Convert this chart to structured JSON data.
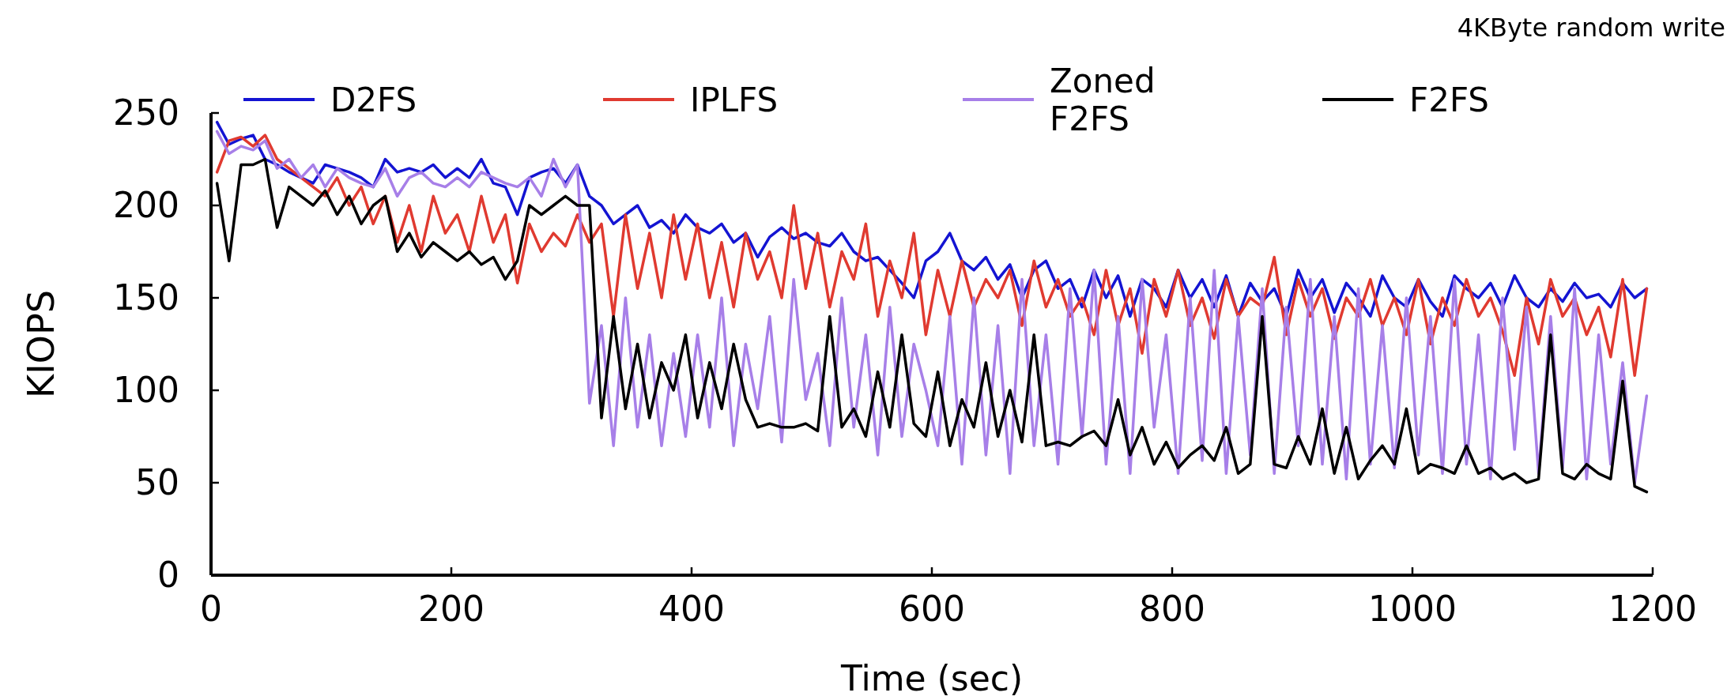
{
  "chart_data": {
    "type": "line",
    "title": "4KByte random write",
    "xlabel": "Time (sec)",
    "ylabel": "KIOPS",
    "x": [
      5,
      15,
      25,
      35,
      45,
      55,
      65,
      75,
      85,
      95,
      105,
      115,
      125,
      135,
      145,
      155,
      165,
      175,
      185,
      195,
      205,
      215,
      225,
      235,
      245,
      255,
      265,
      275,
      285,
      295,
      305,
      315,
      325,
      335,
      345,
      355,
      365,
      375,
      385,
      395,
      405,
      415,
      425,
      435,
      445,
      455,
      465,
      475,
      485,
      495,
      505,
      515,
      525,
      535,
      545,
      555,
      565,
      575,
      585,
      595,
      605,
      615,
      625,
      635,
      645,
      655,
      665,
      675,
      685,
      695,
      705,
      715,
      725,
      735,
      745,
      755,
      765,
      775,
      785,
      795,
      805,
      815,
      825,
      835,
      845,
      855,
      865,
      875,
      885,
      895,
      905,
      915,
      925,
      935,
      945,
      955,
      965,
      975,
      985,
      995,
      1005,
      1015,
      1025,
      1035,
      1045,
      1055,
      1065,
      1075,
      1085,
      1095,
      1105,
      1115,
      1125,
      1135,
      1145,
      1155,
      1165,
      1175,
      1185,
      1195
    ],
    "xlim": [
      0,
      1200
    ],
    "xticks": [
      0,
      200,
      400,
      600,
      800,
      1000,
      1200
    ],
    "ylim": [
      0,
      250
    ],
    "yticks": [
      0,
      50,
      100,
      150,
      200,
      250
    ],
    "legend": "top",
    "line_style": "solid",
    "series": [
      {
        "name": "D2FS",
        "color": "#1414d2",
        "values": [
          245,
          233,
          236,
          238,
          225,
          222,
          218,
          215,
          212,
          222,
          220,
          218,
          215,
          210,
          225,
          218,
          220,
          218,
          222,
          215,
          220,
          215,
          225,
          212,
          210,
          195,
          215,
          218,
          220,
          212,
          222,
          205,
          200,
          190,
          195,
          200,
          188,
          192,
          185,
          195,
          188,
          185,
          190,
          180,
          185,
          172,
          183,
          188,
          182,
          185,
          180,
          178,
          185,
          175,
          170,
          172,
          165,
          158,
          150,
          170,
          175,
          185,
          170,
          165,
          172,
          160,
          168,
          150,
          165,
          170,
          155,
          160,
          145,
          165,
          150,
          162,
          140,
          160,
          155,
          145,
          165,
          150,
          160,
          145,
          162,
          140,
          158,
          148,
          155,
          140,
          165,
          150,
          160,
          142,
          158,
          150,
          140,
          162,
          150,
          145,
          160,
          148,
          140,
          162,
          155,
          150,
          158,
          145,
          162,
          150,
          145,
          155,
          148,
          158,
          150,
          152,
          145,
          158,
          150,
          155
        ]
      },
      {
        "name": "IPLFS",
        "color": "#e03a30",
        "values": [
          218,
          235,
          237,
          232,
          238,
          225,
          220,
          215,
          210,
          205,
          215,
          200,
          210,
          190,
          205,
          180,
          200,
          175,
          205,
          185,
          195,
          175,
          205,
          180,
          195,
          158,
          190,
          175,
          185,
          178,
          195,
          180,
          190,
          140,
          195,
          155,
          185,
          150,
          195,
          160,
          190,
          150,
          180,
          145,
          185,
          160,
          175,
          150,
          200,
          155,
          185,
          145,
          175,
          160,
          190,
          140,
          170,
          150,
          185,
          130,
          165,
          140,
          170,
          145,
          160,
          150,
          165,
          135,
          170,
          145,
          160,
          140,
          150,
          130,
          165,
          135,
          155,
          120,
          160,
          140,
          165,
          135,
          150,
          128,
          160,
          140,
          150,
          145,
          172,
          130,
          160,
          140,
          155,
          128,
          150,
          140,
          160,
          135,
          150,
          130,
          160,
          125,
          150,
          135,
          160,
          140,
          150,
          132,
          108,
          150,
          125,
          160,
          140,
          150,
          130,
          145,
          118,
          160,
          108,
          155
        ]
      },
      {
        "name": "Zoned F2FS",
        "color": "#a77fe8",
        "values": [
          240,
          228,
          232,
          230,
          235,
          220,
          225,
          215,
          222,
          210,
          220,
          215,
          212,
          210,
          220,
          205,
          215,
          218,
          212,
          210,
          215,
          210,
          218,
          215,
          212,
          210,
          215,
          205,
          225,
          210,
          222,
          93,
          135,
          70,
          150,
          80,
          130,
          70,
          120,
          75,
          130,
          80,
          150,
          70,
          125,
          90,
          140,
          72,
          160,
          95,
          120,
          70,
          150,
          80,
          130,
          65,
          145,
          75,
          125,
          100,
          70,
          140,
          60,
          150,
          65,
          135,
          55,
          160,
          70,
          130,
          60,
          155,
          75,
          165,
          60,
          140,
          55,
          160,
          80,
          130,
          55,
          150,
          62,
          165,
          55,
          140,
          65,
          155,
          55,
          145,
          70,
          160,
          60,
          140,
          52,
          155,
          60,
          135,
          58,
          150,
          65,
          140,
          55,
          160,
          60,
          130,
          52,
          150,
          68,
          145,
          55,
          140,
          58,
          155,
          52,
          130,
          60,
          115,
          50,
          97
        ]
      },
      {
        "name": "F2FS",
        "color": "#000000",
        "values": [
          212,
          170,
          222,
          222,
          225,
          188,
          210,
          205,
          200,
          208,
          195,
          205,
          190,
          200,
          205,
          175,
          185,
          172,
          180,
          175,
          170,
          175,
          168,
          172,
          160,
          170,
          200,
          195,
          200,
          205,
          200,
          200,
          85,
          140,
          90,
          125,
          85,
          115,
          100,
          130,
          85,
          115,
          90,
          125,
          95,
          80,
          82,
          80,
          80,
          82,
          78,
          140,
          80,
          90,
          75,
          110,
          80,
          130,
          82,
          75,
          110,
          70,
          95,
          80,
          115,
          75,
          100,
          72,
          130,
          70,
          72,
          70,
          75,
          78,
          70,
          95,
          65,
          80,
          60,
          72,
          58,
          65,
          70,
          62,
          80,
          55,
          60,
          140,
          60,
          58,
          75,
          60,
          90,
          55,
          80,
          52,
          62,
          70,
          60,
          90,
          55,
          60,
          58,
          55,
          70,
          55,
          58,
          52,
          55,
          50,
          52,
          130,
          55,
          52,
          60,
          55,
          52,
          105,
          48,
          45
        ]
      }
    ]
  }
}
